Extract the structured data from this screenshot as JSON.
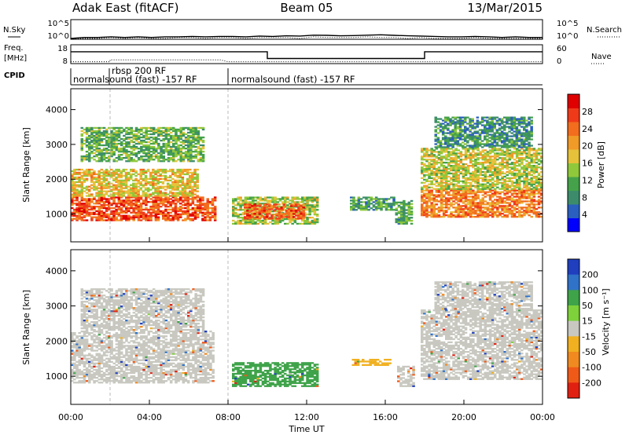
{
  "header": {
    "radar": "Adak East (fitACF)",
    "beam": "Beam 05",
    "date": "13/Mar/2015"
  },
  "colors": {
    "power_scale": [
      "#0000ff",
      "#2a5fbf",
      "#3c8c6c",
      "#45a24a",
      "#8fc83a",
      "#e6c23a",
      "#f09a28",
      "#f26d1e",
      "#ef3a1a",
      "#e00000"
    ],
    "velocity_scale": [
      "#1f3fbf",
      "#2f72c8",
      "#3fa34a",
      "#7ed13a",
      "#c8c8c0",
      "#f0b020",
      "#f08a20",
      "#f05a18",
      "#e02010"
    ],
    "ground_scatter": "#bebebe",
    "velocity_main": "#6fd030"
  },
  "chart_data": [
    {
      "type": "line",
      "name": "nsky-panel",
      "series": [
        {
          "name": "N.Sky",
          "style": "solid",
          "values": [
            1,
            2,
            2,
            3,
            2,
            3,
            2,
            3,
            3,
            4,
            3,
            4,
            4,
            3,
            5,
            4,
            6,
            5,
            9,
            8,
            6,
            7,
            9,
            12,
            8,
            6,
            5,
            4,
            3,
            3,
            4,
            3,
            2,
            3,
            2,
            2
          ]
        },
        {
          "name": "N.Search",
          "style": "dotted",
          "values": [
            1,
            1,
            1,
            2,
            1,
            2,
            1,
            1,
            2,
            2,
            1,
            2,
            2,
            1,
            2,
            2,
            2,
            1,
            3,
            2,
            2,
            2,
            3,
            2,
            2,
            1,
            2,
            1,
            1,
            1,
            2,
            1,
            1,
            1,
            1,
            1
          ]
        }
      ],
      "left_label": "N.Sky",
      "right_label": "N.Search",
      "left_ticks": [
        "10^5",
        "10^0"
      ],
      "right_ticks": [
        "10^5",
        "10^0"
      ],
      "log_scale": true,
      "ylim": [
        1,
        100000
      ]
    },
    {
      "type": "line",
      "name": "freq-panel",
      "series": [
        {
          "name": "Freq.",
          "style": "solid",
          "x": [
            0,
            10,
            10,
            18,
            18,
            24
          ],
          "values": [
            14.3,
            14.3,
            10.7,
            10.7,
            14.3,
            14.3
          ]
        },
        {
          "name": "Nave",
          "style": "dotted",
          "x": [
            0,
            2,
            2,
            7.6,
            8,
            24
          ],
          "values": [
            9,
            9,
            10,
            10,
            9,
            9
          ]
        }
      ],
      "left_label": "Freq. [MHz]",
      "right_label": "Nave",
      "left_ticks": [
        "18",
        "8"
      ],
      "right_ticks": [
        "60",
        "0"
      ],
      "ylim": [
        8,
        18
      ]
    },
    {
      "type": "table",
      "name": "cpid-panel",
      "label": "CPID",
      "entries": [
        {
          "x": 0,
          "text": "normalsound (fast) -157 RF"
        },
        {
          "x": 2,
          "text": "rbsp 200 RF"
        },
        {
          "x": 8,
          "text": "normalsound (fast) -157 RF"
        }
      ]
    },
    {
      "type": "heatmap",
      "name": "power-panel",
      "ylabel": "Slant Range [km]",
      "yticks": [
        1000,
        2000,
        3000,
        4000
      ],
      "ylim": [
        200,
        4600
      ],
      "colorbar_label": "Power [dB]",
      "colorbar_ticks": [
        4,
        8,
        12,
        16,
        20,
        24,
        28
      ],
      "colorbar_range": [
        0,
        32
      ],
      "regions": [
        {
          "x0": 0,
          "x1": 7.4,
          "r0": 800,
          "r1": 1500,
          "power": 26
        },
        {
          "x0": 0,
          "x1": 6.5,
          "r0": 1500,
          "r1": 2300,
          "power": 18
        },
        {
          "x0": 0.5,
          "x1": 6.8,
          "r0": 2500,
          "r1": 3500,
          "power": 12
        },
        {
          "x0": 8.2,
          "x1": 12.6,
          "r0": 700,
          "r1": 1500,
          "power": 15
        },
        {
          "x0": 8.8,
          "x1": 11.9,
          "r0": 850,
          "r1": 1300,
          "power": 25
        },
        {
          "x0": 14.2,
          "x1": 16.5,
          "r0": 1100,
          "r1": 1500,
          "power": 10
        },
        {
          "x0": 16.5,
          "x1": 17.4,
          "r0": 700,
          "r1": 1400,
          "power": 11
        },
        {
          "x0": 17.8,
          "x1": 24,
          "r0": 900,
          "r1": 1700,
          "power": 23
        },
        {
          "x0": 17.8,
          "x1": 24,
          "r0": 1700,
          "r1": 2900,
          "power": 16
        },
        {
          "x0": 18.5,
          "x1": 23.5,
          "r0": 2900,
          "r1": 3800,
          "power": 9
        }
      ]
    },
    {
      "type": "heatmap",
      "name": "velocity-panel",
      "ylabel": "Slant Range [km]",
      "xlabel": "Time UT",
      "xticks": [
        "00:00",
        "04:00",
        "08:00",
        "12:00",
        "16:00",
        "20:00",
        "00:00"
      ],
      "yticks": [
        1000,
        2000,
        3000,
        4000
      ],
      "ylim": [
        200,
        4600
      ],
      "colorbar_label": "Velocity [m s⁻¹]",
      "colorbar_ticks": [
        200,
        100,
        50,
        15,
        -15,
        -50,
        -100,
        -200
      ],
      "regions": [
        {
          "x0": 0,
          "x1": 7.3,
          "r0": 800,
          "r1": 2300,
          "velocity": 0
        },
        {
          "x0": 0.5,
          "x1": 6.8,
          "r0": 2300,
          "r1": 3500,
          "velocity": 0
        },
        {
          "x0": 8.2,
          "x1": 12.6,
          "r0": 700,
          "r1": 1400,
          "velocity": 40
        },
        {
          "x0": 14.3,
          "x1": 16.3,
          "r0": 1300,
          "r1": 1500,
          "velocity": -30
        },
        {
          "x0": 16.6,
          "x1": 17.5,
          "r0": 700,
          "r1": 1300,
          "velocity": 0
        },
        {
          "x0": 17.8,
          "x1": 24,
          "r0": 900,
          "r1": 2900,
          "velocity": 0
        },
        {
          "x0": 18.5,
          "x1": 23.5,
          "r0": 2900,
          "r1": 3700,
          "velocity": 5
        }
      ]
    }
  ]
}
